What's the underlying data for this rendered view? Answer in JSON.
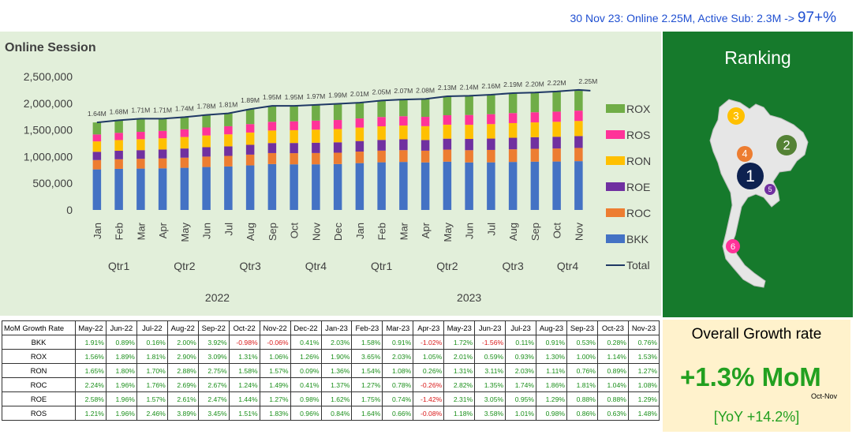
{
  "headline": {
    "prefix": "30 Nov 23: Online ",
    "online": "2.25M",
    "mid": ", Active Sub: ",
    "active": "2.3M",
    "arrow": " -> ",
    "ratio": "97+%"
  },
  "chart_data": {
    "type": "bar",
    "stacked": true,
    "title": "Online Session",
    "categories": [
      "Jan",
      "Feb",
      "Mar",
      "Apr",
      "May",
      "Jun",
      "Jul",
      "Aug",
      "Sep",
      "Oct",
      "Nov",
      "Dec",
      "Jan",
      "Feb",
      "Mar",
      "Apr",
      "May",
      "Jun",
      "Jul",
      "Aug",
      "Sep",
      "Oct",
      "Nov"
    ],
    "quarters": [
      {
        "label": "Qtr1",
        "span": 3
      },
      {
        "label": "Qtr2",
        "span": 3
      },
      {
        "label": "Qtr3",
        "span": 3
      },
      {
        "label": "Qtr4",
        "span": 3
      },
      {
        "label": "Qtr1",
        "span": 3
      },
      {
        "label": "Qtr2",
        "span": 3
      },
      {
        "label": "Qtr3",
        "span": 3
      },
      {
        "label": "Qtr4",
        "span": 2
      }
    ],
    "years": [
      {
        "label": "2022",
        "span": 12
      },
      {
        "label": "2023",
        "span": 11
      }
    ],
    "ylim": [
      0,
      2500000
    ],
    "yticks": [
      0,
      500000,
      1000000,
      1500000,
      2000000,
      2500000
    ],
    "ytick_labels": [
      "0",
      "500,000",
      "1,000,000",
      "1,500,000",
      "2,000,000",
      "2,500,000"
    ],
    "series": [
      {
        "name": "BKK",
        "color": "#4472c4",
        "values": [
          760000,
          770000,
          775000,
          780000,
          790000,
          805000,
          815000,
          835000,
          860000,
          855000,
          855000,
          860000,
          878000,
          893000,
          900000,
          891000,
          905000,
          891000,
          892000,
          900000,
          905000,
          908000,
          915000
        ]
      },
      {
        "name": "ROC",
        "color": "#ed7d31",
        "values": [
          175000,
          180000,
          183000,
          186000,
          190000,
          195000,
          198000,
          202000,
          206000,
          209000,
          212000,
          213000,
          216000,
          219000,
          221000,
          220000,
          226000,
          229000,
          233000,
          237000,
          241000,
          244000,
          247000
        ]
      },
      {
        "name": "ROE",
        "color": "#7030a0",
        "values": [
          155000,
          160000,
          163000,
          167000,
          172000,
          176000,
          179000,
          184000,
          188000,
          191000,
          193000,
          195000,
          198000,
          201000,
          203000,
          200000,
          205000,
          211000,
          213000,
          216000,
          218000,
          220000,
          223000
        ]
      },
      {
        "name": "RON",
        "color": "#ffc000",
        "values": [
          195000,
          200000,
          205000,
          210000,
          215000,
          220000,
          225000,
          230000,
          235000,
          240000,
          245000,
          248000,
          252000,
          255000,
          258000,
          259000,
          262000,
          265000,
          271000,
          275000,
          277000,
          280000,
          283000
        ]
      },
      {
        "name": "ROS",
        "color": "#ff3399",
        "values": [
          130000,
          135000,
          138000,
          140000,
          145000,
          150000,
          152000,
          158000,
          163000,
          166000,
          169000,
          170000,
          171000,
          174000,
          175000,
          175000,
          177000,
          184000,
          186000,
          188000,
          190000,
          191000,
          194000
        ]
      },
      {
        "name": "ROX",
        "color": "#70ad47",
        "values": [
          225000,
          235000,
          246000,
          227000,
          228000,
          234000,
          241000,
          281000,
          298000,
          289000,
          296000,
          304000,
          295000,
          308000,
          321000,
          335000,
          355000,
          360000,
          365000,
          364000,
          369000,
          377000,
          388000
        ]
      }
    ],
    "total": {
      "name": "Total",
      "color": "#1f3864",
      "values": [
        1640000,
        1680000,
        1710000,
        1710000,
        1740000,
        1780000,
        1810000,
        1890000,
        1950000,
        1950000,
        1970000,
        1990000,
        2010000,
        2050000,
        2070000,
        2080000,
        2130000,
        2140000,
        2160000,
        2190000,
        2200000,
        2220000,
        2250000
      ]
    },
    "total_labels": [
      "1.64M",
      "1.68M",
      "1.71M",
      "1.71M",
      "1.74M",
      "1.78M",
      "1.81M",
      "1.89M",
      "1.95M",
      "1.95M",
      "1.97M",
      "1.99M",
      "2.01M",
      "2.05M",
      "2.07M",
      "2.08M",
      "2.13M",
      "2.14M",
      "2.16M",
      "2.19M",
      "2.20M",
      "2.22M",
      "2.25M"
    ],
    "legend": [
      "ROX",
      "ROS",
      "RON",
      "ROE",
      "ROC",
      "BKK",
      "Total"
    ],
    "legend_position": "right"
  },
  "ranking": {
    "title": "Ranking",
    "markers": [
      {
        "num": "1",
        "color": "#0d2150"
      },
      {
        "num": "2",
        "color": "#548235"
      },
      {
        "num": "3",
        "color": "#ffc000"
      },
      {
        "num": "4",
        "color": "#ed7d31"
      },
      {
        "num": "5",
        "color": "#7030a0"
      },
      {
        "num": "6",
        "color": "#ff3399"
      }
    ]
  },
  "table": {
    "corner": "MoM Growth Rate",
    "columns": [
      "May-22",
      "Jun-22",
      "Jul-22",
      "Aug-22",
      "Sep-22",
      "Oct-22",
      "Nov-22",
      "Dec-22",
      "Jan-23",
      "Feb-23",
      "Mar-23",
      "Apr-23",
      "May-23",
      "Jun-23",
      "Jul-23",
      "Aug-23",
      "Sep-23",
      "Oct-23",
      "Nov-23"
    ],
    "rows": [
      {
        "label": "BKK",
        "values": [
          "1.91%",
          "0.89%",
          "0.16%",
          "2.00%",
          "3.92%",
          "-0.98%",
          "-0.06%",
          "0.41%",
          "2.03%",
          "1.58%",
          "0.91%",
          "-1.02%",
          "1.72%",
          "-1.56%",
          "0.11%",
          "0.91%",
          "0.53%",
          "0.28%",
          "0.76%"
        ]
      },
      {
        "label": "ROX",
        "values": [
          "1.56%",
          "1.89%",
          "1.81%",
          "2.90%",
          "3.09%",
          "1.31%",
          "1.06%",
          "1.26%",
          "1.90%",
          "3.65%",
          "2.03%",
          "1.05%",
          "2.01%",
          "0.59%",
          "0.93%",
          "1.30%",
          "1.00%",
          "1.14%",
          "1.53%"
        ]
      },
      {
        "label": "RON",
        "values": [
          "1.65%",
          "1.80%",
          "1.70%",
          "2.88%",
          "2.75%",
          "1.58%",
          "1.57%",
          "0.09%",
          "1.36%",
          "1.54%",
          "1.08%",
          "0.26%",
          "1.31%",
          "3.11%",
          "2.03%",
          "1.11%",
          "0.76%",
          "0.89%",
          "1.27%"
        ]
      },
      {
        "label": "ROC",
        "values": [
          "2.24%",
          "1.96%",
          "1.76%",
          "2.69%",
          "2.67%",
          "1.24%",
          "1.49%",
          "0.41%",
          "1.37%",
          "1.27%",
          "0.78%",
          "-0.26%",
          "2.82%",
          "1.35%",
          "1.74%",
          "1.86%",
          "1.81%",
          "1.04%",
          "1.08%"
        ]
      },
      {
        "label": "ROE",
        "values": [
          "2.58%",
          "1.96%",
          "1.57%",
          "2.61%",
          "2.47%",
          "1.44%",
          "1.27%",
          "0.98%",
          "1.62%",
          "1.75%",
          "0.74%",
          "-1.42%",
          "2.31%",
          "3.05%",
          "0.95%",
          "1.29%",
          "0.88%",
          "0.88%",
          "1.29%"
        ]
      },
      {
        "label": "ROS",
        "values": [
          "1.21%",
          "1.96%",
          "2.46%",
          "3.89%",
          "3.45%",
          "1.51%",
          "1.83%",
          "0.96%",
          "0.84%",
          "1.64%",
          "0.66%",
          "-0.08%",
          "1.18%",
          "3.58%",
          "1.01%",
          "0.98%",
          "0.86%",
          "0.63%",
          "1.48%"
        ]
      }
    ]
  },
  "growth": {
    "title": "Overall Growth rate",
    "mom": "+1.3% MoM",
    "period": "Oct-Nov",
    "yoy": "[YoY +14.2%]"
  }
}
